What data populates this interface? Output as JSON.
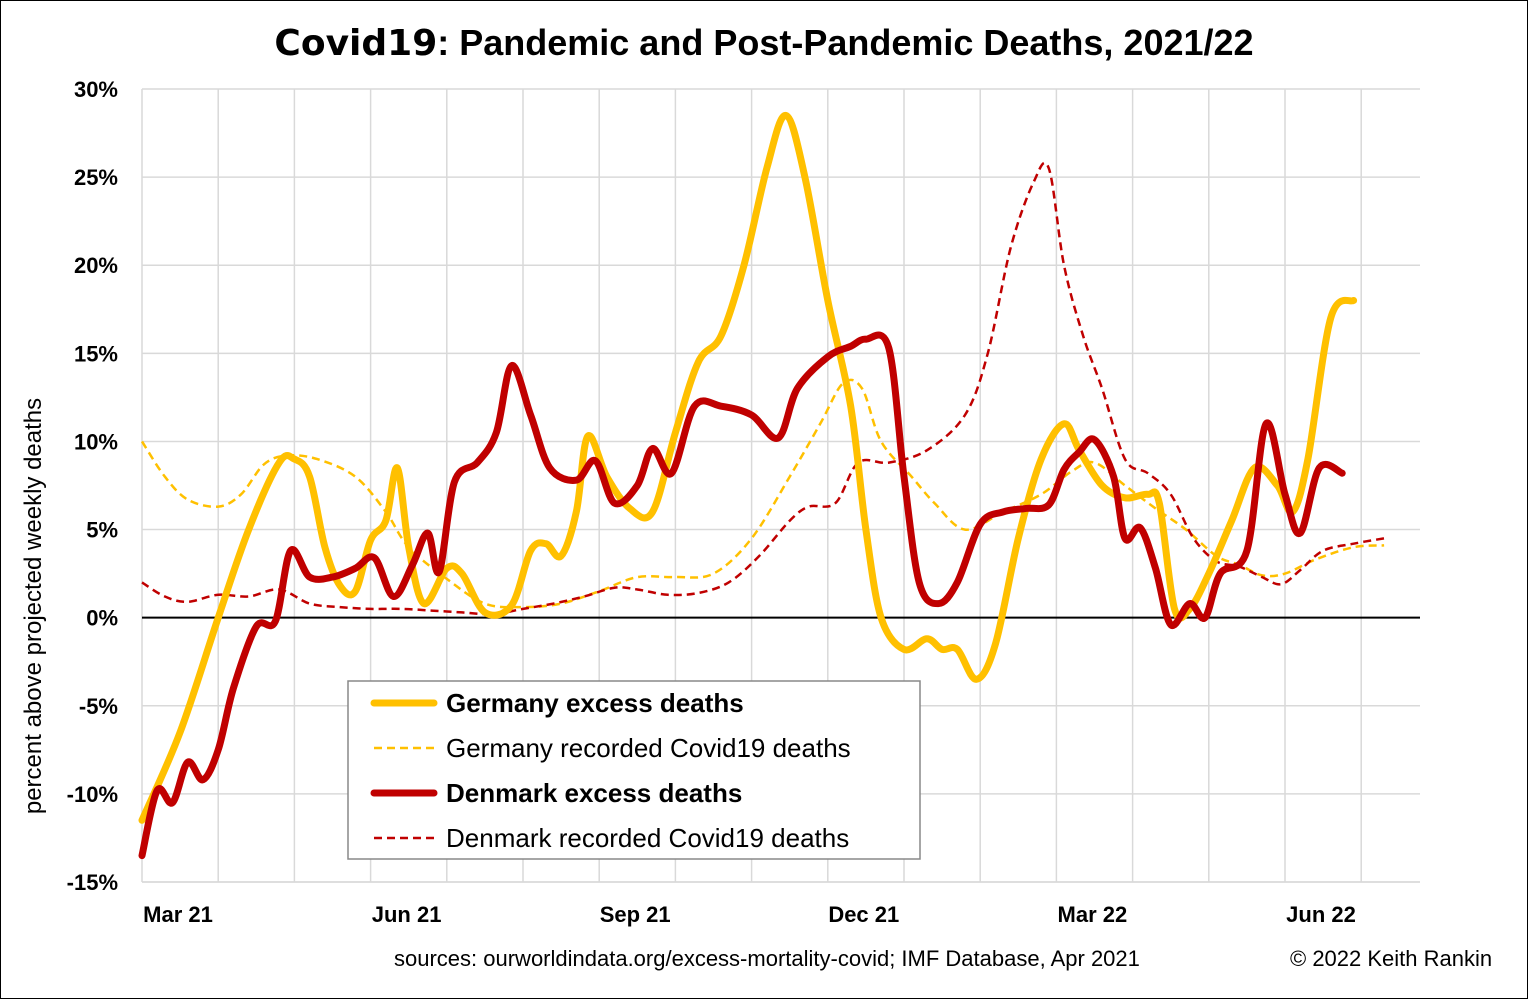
{
  "title_prefix": "Covid19",
  "title_rest": ": Pandemic and Post-Pandemic Deaths, 2021/22",
  "sources": "sources: ourworldindata.org/excess-mortality-covid; IMF Database, Apr 2021",
  "copyright": "© 2022 Keith Rankin",
  "chart_data": {
    "type": "line",
    "title": "Covid19: Pandemic and Post-Pandemic Deaths, 2021/22",
    "ylabel": "percent above projected weekly deaths",
    "xlabel": "",
    "ylim": [
      -15,
      30
    ],
    "yticks": [
      30,
      25,
      20,
      15,
      10,
      5,
      0,
      -5,
      -10,
      -15
    ],
    "ytick_labels": [
      "30%",
      "25%",
      "20%",
      "15%",
      "10%",
      "5%",
      "0%",
      "-5%",
      "-10%",
      "-15%"
    ],
    "x_range_months": [
      0,
      16.9
    ],
    "x_ticks_labeled": [
      {
        "month": 0,
        "label": "Mar 21"
      },
      {
        "month": 3,
        "label": "Jun 21"
      },
      {
        "month": 6,
        "label": "Sep 21"
      },
      {
        "month": 9,
        "label": "Dec 21"
      },
      {
        "month": 12,
        "label": "Mar 22"
      },
      {
        "month": 15,
        "label": "Jun 22"
      }
    ],
    "x_minor_ticks": [
      1,
      2,
      4,
      5,
      7,
      8,
      10,
      11,
      13,
      14,
      16
    ],
    "grid": true,
    "legend_position": "bottom-center",
    "series": [
      {
        "name": "Germany excess deaths",
        "color": "#FFC000",
        "style": "solid-thick",
        "points": [
          [
            0,
            -11.5
          ],
          [
            0.5,
            -6.5
          ],
          [
            1,
            0
          ],
          [
            1.4,
            5
          ],
          [
            1.8,
            8.8
          ],
          [
            2,
            9
          ],
          [
            2.2,
            8
          ],
          [
            2.4,
            4
          ],
          [
            2.6,
            1.8
          ],
          [
            2.8,
            1.5
          ],
          [
            3,
            4.4
          ],
          [
            3.2,
            5.5
          ],
          [
            3.35,
            8.5
          ],
          [
            3.5,
            4
          ],
          [
            3.7,
            0.8
          ],
          [
            4,
            2.8
          ],
          [
            4.2,
            2.5
          ],
          [
            4.5,
            0.3
          ],
          [
            4.85,
            0.7
          ],
          [
            5.1,
            3.8
          ],
          [
            5.3,
            4.2
          ],
          [
            5.5,
            3.5
          ],
          [
            5.7,
            6
          ],
          [
            5.85,
            10.3
          ],
          [
            6.1,
            8
          ],
          [
            6.4,
            6.2
          ],
          [
            6.7,
            6
          ],
          [
            7,
            10.5
          ],
          [
            7.3,
            14.5
          ],
          [
            7.6,
            16
          ],
          [
            7.9,
            20
          ],
          [
            8.2,
            25.5
          ],
          [
            8.45,
            28.5
          ],
          [
            8.7,
            25
          ],
          [
            9,
            18
          ],
          [
            9.3,
            12
          ],
          [
            9.5,
            5
          ],
          [
            9.7,
            0
          ],
          [
            10,
            -1.8
          ],
          [
            10.3,
            -1.2
          ],
          [
            10.5,
            -1.8
          ],
          [
            10.7,
            -1.8
          ],
          [
            10.95,
            -3.5
          ],
          [
            11.2,
            -1.5
          ],
          [
            11.5,
            4.5
          ],
          [
            11.8,
            9
          ],
          [
            12.1,
            11
          ],
          [
            12.3,
            9.5
          ],
          [
            12.6,
            7.5
          ],
          [
            12.9,
            6.8
          ],
          [
            13.2,
            7
          ],
          [
            13.35,
            6.5
          ],
          [
            13.55,
            0.5
          ],
          [
            13.75,
            0.5
          ],
          [
            14,
            2.5
          ],
          [
            14.3,
            5.5
          ],
          [
            14.6,
            8.5
          ],
          [
            14.9,
            7.5
          ],
          [
            15.1,
            6
          ],
          [
            15.3,
            9
          ],
          [
            15.6,
            17
          ],
          [
            15.9,
            18
          ]
        ]
      },
      {
        "name": "Germany recorded Covid19 deaths",
        "color": "#FFC000",
        "style": "dashed",
        "points": [
          [
            0,
            10
          ],
          [
            0.3,
            8
          ],
          [
            0.6,
            6.7
          ],
          [
            1,
            6.3
          ],
          [
            1.3,
            7
          ],
          [
            1.6,
            8.7
          ],
          [
            1.9,
            9.2
          ],
          [
            2.3,
            9
          ],
          [
            2.8,
            8
          ],
          [
            3.2,
            6
          ],
          [
            3.5,
            4
          ],
          [
            4,
            2.2
          ],
          [
            4.5,
            0.8
          ],
          [
            5,
            0.6
          ],
          [
            5.5,
            0.8
          ],
          [
            6,
            1.5
          ],
          [
            6.5,
            2.3
          ],
          [
            7,
            2.3
          ],
          [
            7.5,
            2.5
          ],
          [
            8,
            4.5
          ],
          [
            8.5,
            8
          ],
          [
            8.9,
            11
          ],
          [
            9.2,
            13.3
          ],
          [
            9.45,
            13
          ],
          [
            9.7,
            10
          ],
          [
            10.1,
            8
          ],
          [
            10.4,
            6.5
          ],
          [
            10.8,
            5
          ],
          [
            11.3,
            6
          ],
          [
            11.8,
            7
          ],
          [
            12.2,
            8.3
          ],
          [
            12.5,
            8.8
          ],
          [
            12.9,
            7.5
          ],
          [
            13.3,
            6.2
          ],
          [
            13.7,
            5
          ],
          [
            14.1,
            3.5
          ],
          [
            14.4,
            3
          ],
          [
            14.7,
            2.4
          ],
          [
            15,
            2.5
          ],
          [
            15.4,
            3.3
          ],
          [
            15.9,
            4
          ],
          [
            16.3,
            4.1
          ]
        ]
      },
      {
        "name": "Denmark excess deaths",
        "color": "#C00000",
        "style": "solid-thick",
        "points": [
          [
            0,
            -13.5
          ],
          [
            0.2,
            -9.8
          ],
          [
            0.4,
            -10.5
          ],
          [
            0.6,
            -8.2
          ],
          [
            0.8,
            -9.2
          ],
          [
            1,
            -7.5
          ],
          [
            1.2,
            -4
          ],
          [
            1.5,
            -0.5
          ],
          [
            1.75,
            -0.2
          ],
          [
            1.95,
            3.8
          ],
          [
            2.2,
            2.3
          ],
          [
            2.5,
            2.3
          ],
          [
            2.8,
            2.8
          ],
          [
            3.05,
            3.4
          ],
          [
            3.3,
            1.2
          ],
          [
            3.55,
            3
          ],
          [
            3.75,
            4.8
          ],
          [
            3.9,
            2.6
          ],
          [
            4.1,
            7.7
          ],
          [
            4.4,
            8.8
          ],
          [
            4.65,
            10.5
          ],
          [
            4.85,
            14.3
          ],
          [
            5.1,
            11.5
          ],
          [
            5.35,
            8.5
          ],
          [
            5.7,
            7.8
          ],
          [
            5.95,
            8.9
          ],
          [
            6.2,
            6.5
          ],
          [
            6.5,
            7.5
          ],
          [
            6.7,
            9.6
          ],
          [
            6.95,
            8.2
          ],
          [
            7.25,
            12
          ],
          [
            7.6,
            12
          ],
          [
            8.0,
            11.5
          ],
          [
            8.35,
            10.2
          ],
          [
            8.6,
            13
          ],
          [
            9.0,
            14.8
          ],
          [
            9.3,
            15.4
          ],
          [
            9.5,
            15.8
          ],
          [
            9.8,
            15.3
          ],
          [
            10.0,
            8
          ],
          [
            10.2,
            2
          ],
          [
            10.45,
            0.8
          ],
          [
            10.7,
            2
          ],
          [
            11.0,
            5.3
          ],
          [
            11.3,
            6
          ],
          [
            11.6,
            6.2
          ],
          [
            11.9,
            6.4
          ],
          [
            12.1,
            8.4
          ],
          [
            12.3,
            9.4
          ],
          [
            12.5,
            10.1
          ],
          [
            12.75,
            8
          ],
          [
            12.9,
            4.5
          ],
          [
            13.1,
            5.1
          ],
          [
            13.3,
            2.8
          ],
          [
            13.5,
            -0.4
          ],
          [
            13.75,
            0.8
          ],
          [
            13.95,
            0
          ],
          [
            14.15,
            2.5
          ],
          [
            14.5,
            3.8
          ],
          [
            14.75,
            11
          ],
          [
            15.0,
            7
          ],
          [
            15.2,
            4.8
          ],
          [
            15.45,
            8.5
          ],
          [
            15.75,
            8.2
          ]
        ]
      },
      {
        "name": "Denmark recorded Covid19 deaths",
        "color": "#C00000",
        "style": "dashed",
        "points": [
          [
            0,
            2
          ],
          [
            0.3,
            1.2
          ],
          [
            0.6,
            0.9
          ],
          [
            1,
            1.3
          ],
          [
            1.4,
            1.2
          ],
          [
            1.8,
            1.6
          ],
          [
            2.2,
            0.8
          ],
          [
            2.6,
            0.6
          ],
          [
            3,
            0.5
          ],
          [
            3.4,
            0.5
          ],
          [
            3.8,
            0.4
          ],
          [
            4.2,
            0.3
          ],
          [
            4.6,
            0.2
          ],
          [
            5,
            0.5
          ],
          [
            5.4,
            0.8
          ],
          [
            5.8,
            1.2
          ],
          [
            6.2,
            1.7
          ],
          [
            6.5,
            1.6
          ],
          [
            6.9,
            1.3
          ],
          [
            7.3,
            1.4
          ],
          [
            7.7,
            2
          ],
          [
            8.1,
            3.5
          ],
          [
            8.5,
            5.5
          ],
          [
            8.75,
            6.3
          ],
          [
            9.1,
            6.5
          ],
          [
            9.4,
            8.8
          ],
          [
            9.8,
            8.8
          ],
          [
            10.3,
            9.5
          ],
          [
            10.8,
            11.5
          ],
          [
            11.1,
            15
          ],
          [
            11.4,
            21
          ],
          [
            11.7,
            24.7
          ],
          [
            11.9,
            25.5
          ],
          [
            12.1,
            20
          ],
          [
            12.35,
            16
          ],
          [
            12.6,
            13
          ],
          [
            12.9,
            9
          ],
          [
            13.2,
            8.2
          ],
          [
            13.5,
            7
          ],
          [
            13.8,
            4.5
          ],
          [
            14.1,
            3.2
          ],
          [
            14.4,
            2.9
          ],
          [
            14.7,
            2.3
          ],
          [
            14.95,
            1.9
          ],
          [
            15.2,
            2.7
          ],
          [
            15.5,
            3.8
          ],
          [
            15.9,
            4.2
          ],
          [
            16.3,
            4.5
          ]
        ]
      }
    ]
  }
}
